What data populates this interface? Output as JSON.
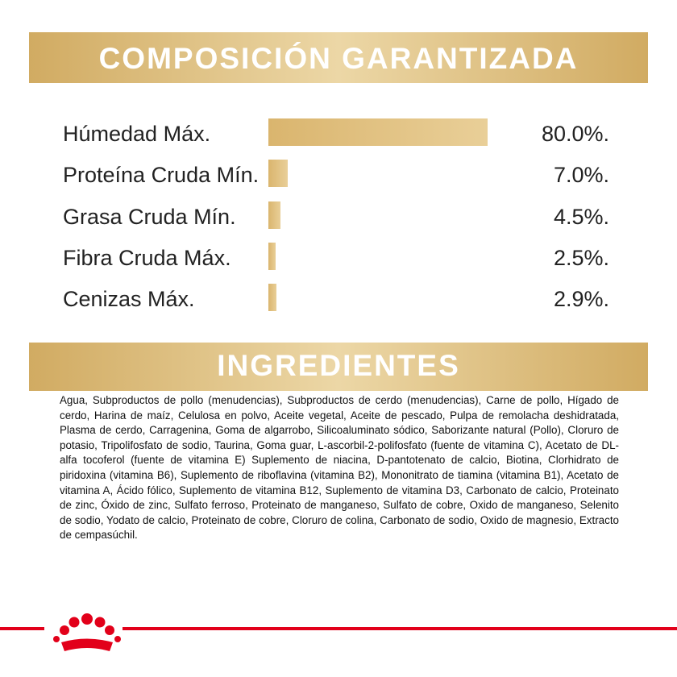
{
  "composition": {
    "title": "COMPOSICIÓN GARANTIZADA",
    "rows": [
      {
        "label": "Húmedad Máx.",
        "value": 80.0,
        "value_label": "80.0%."
      },
      {
        "label": "Proteína Cruda Mín.",
        "value": 7.0,
        "value_label": "7.0%."
      },
      {
        "label": "Grasa Cruda Mín.",
        "value": 4.5,
        "value_label": "4.5%."
      },
      {
        "label": "Fibra Cruda Máx.",
        "value": 2.5,
        "value_label": "2.5%."
      },
      {
        "label": "Cenizas Máx.",
        "value": 2.9,
        "value_label": "2.9%."
      }
    ],
    "color": "#dab56e"
  },
  "ingredients": {
    "title": "INGREDIENTES",
    "text": "Agua, Subproductos de pollo (menudencias), Subproductos de cerdo (menudencias), Carne de pollo, Hígado de cerdo, Harina de maíz, Celulosa en polvo, Aceite vegetal, Aceite de pescado, Pulpa de remolacha deshidratada, Plasma de cerdo, Carragenina, Goma de algarrobo, Silicoaluminato sódico, Saborizante natural (Pollo), Cloruro de potasio, Tripolifosfato de sodio, Taurina, Goma guar, L-ascorbil-2-polifosfato (fuente de vitamina C), Acetato de DL-alfa tocoferol (fuente de vitamina E) Suplemento de niacina, D-pantotenato de calcio, Biotina, Clorhidrato de piridoxina (vitamina B6), Suplemento de riboflavina (vitamina B2), Mononitrato de tiamina (vitamina B1), Acetato de vitamina A, Ácido fólico, Suplemento de vitamina B12, Suplemento de vitamina D3, Carbonato de calcio, Proteinato de zinc, Óxido de zinc, Sulfato ferroso, Proteinato de manganeso, Sulfato de cobre, Oxido de manganeso, Selenito de sodio, Yodato de calcio, Proteinato de cobre, Cloruro de colina, Carbonato de sodio, Oxido de magnesio, Extracto de cempasúchil."
  }
}
